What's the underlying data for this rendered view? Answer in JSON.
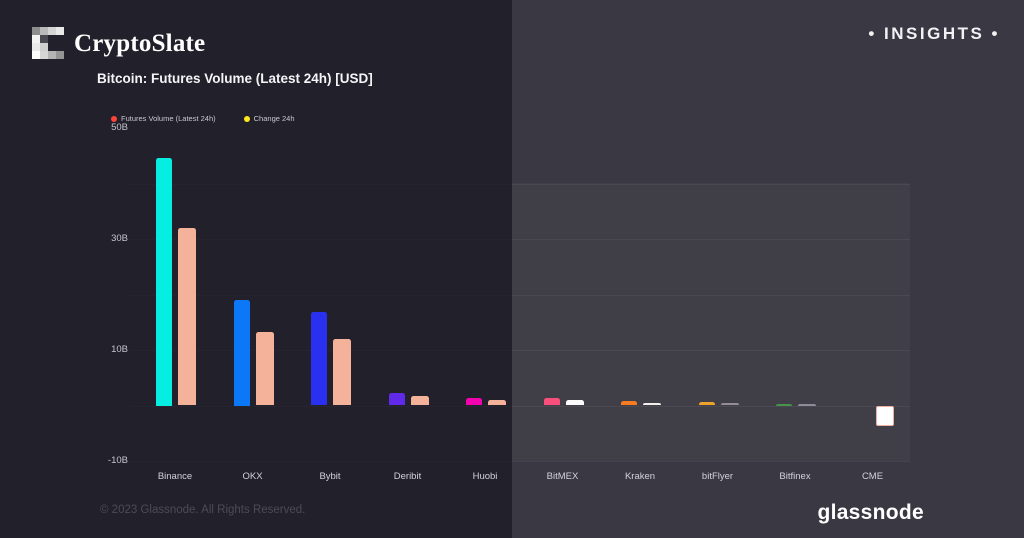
{
  "header": {
    "brand": "CryptoSlate",
    "insights_label": "• INSIGHTS •",
    "logo_cells": [
      [
        "#8d8d8d",
        "#b9b9b9",
        "#d4d4d4",
        "#e8e8e8"
      ],
      [
        "#f3f3f3",
        "#4a4952",
        "",
        ""
      ],
      [
        "#eaeaea",
        "#cfcfcf",
        "",
        ""
      ],
      [
        "#fdfdfd",
        "#d6d6d6",
        "#b4b4b4",
        "#949494"
      ]
    ]
  },
  "footer": {
    "copyright": "© 2023 Glassnode. All Rights Reserved.",
    "brand": "glassnode"
  },
  "colors": {
    "left_bg": "#22202a",
    "right_bg": "#3a3943",
    "legend_volume_dot": "#fe4438",
    "legend_change_dot": "#ffe81d"
  },
  "chart_data": {
    "type": "bar",
    "title": "Bitcoin: Futures Volume (Latest 24h) [USD]",
    "unit": "billions USD",
    "categories": [
      "Binance",
      "OKX",
      "Bybit",
      "Deribit",
      "Huobi",
      "BitMEX",
      "Kraken",
      "bitFlyer",
      "Bitfinex",
      "CME"
    ],
    "series": [
      {
        "name": "Futures Volume (Latest 24h)",
        "values": [
          44.6,
          19.1,
          16.8,
          2.2,
          1.4,
          1.4,
          0.8,
          0.6,
          0.3,
          0
        ],
        "colors": [
          "#06eee1",
          "#0b79f7",
          "#2a30f0",
          "#6129ea",
          "#f203ae",
          "#f94f7d",
          "#f87b21",
          "#eda32b",
          "#47934c",
          "#ffffff"
        ],
        "border_colors": [
          null,
          null,
          null,
          null,
          null,
          null,
          null,
          null,
          null,
          null
        ]
      },
      {
        "name": "Change 24h",
        "values": [
          32.0,
          13.3,
          12.0,
          1.7,
          1.0,
          0.95,
          0.5,
          0.4,
          0.35,
          -3.7
        ],
        "colors": [
          "#f4b29b",
          "#f4b29b",
          "#f4b29b",
          "#f4b29b",
          "#f4b29b",
          "#fdfbfb",
          "#f6eded",
          "#958c96",
          "#8f8c99",
          "#ffffff"
        ],
        "border_colors": [
          null,
          null,
          null,
          null,
          null,
          null,
          null,
          null,
          null,
          "#eeb0a2"
        ]
      }
    ],
    "ylim": [
      -10,
      50
    ],
    "yticks": [
      {
        "label": "50B",
        "value": 50
      },
      {
        "label": "30B",
        "value": 30
      },
      {
        "label": "10B",
        "value": 10
      },
      {
        "label": "-10B",
        "value": -10
      }
    ],
    "gridline_values": [
      40,
      30,
      20,
      10,
      0,
      -10
    ],
    "legend_position": "top-left",
    "grid": "horizontal-faint"
  }
}
